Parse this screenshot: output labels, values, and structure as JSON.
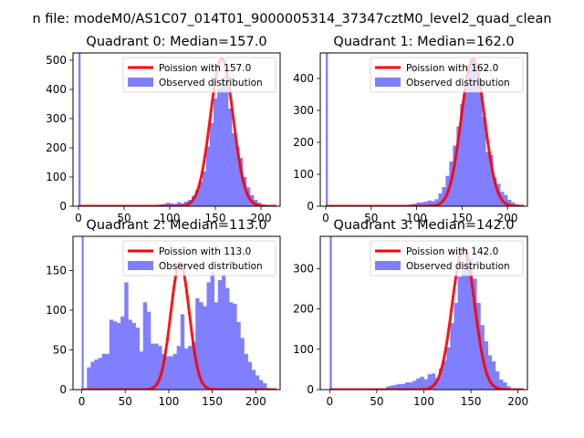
{
  "figure": {
    "suptitle": "n file: modeM0/AS1C07_014T01_9000005314_37347cztM0_level2_quad_clean",
    "colors": {
      "fit": "#ff0000",
      "hist": "#7f7fff",
      "axes": "#000000"
    }
  },
  "chart_data": [
    {
      "type": "bar",
      "title": "Quadrant 0: Median=157.0",
      "xlim": [
        -6,
        221
      ],
      "ylim": [
        0,
        525
      ],
      "xticks": [
        0,
        50,
        100,
        150,
        200
      ],
      "yticks": [
        0,
        100,
        200,
        300,
        400,
        500
      ],
      "legend": [
        "Poission with 157.0",
        "Observed distribution"
      ],
      "legend_loc": "upper right",
      "fit": {
        "label": "Poission with 157.0",
        "mean": 157.0,
        "peak": 505
      },
      "hist": {
        "label": "Observed distribution",
        "bin_width": 4,
        "spike": {
          "x0": 0,
          "x1": 2,
          "value": 525
        },
        "x0": [
          84,
          88,
          92,
          96,
          100,
          104,
          108,
          112,
          116,
          120,
          124,
          128,
          132,
          136,
          140,
          144,
          148,
          152,
          156,
          160,
          164,
          168,
          172,
          176,
          180,
          184,
          188,
          192,
          196,
          200,
          204,
          208
        ],
        "values": [
          4,
          6,
          8,
          12,
          10,
          8,
          14,
          10,
          16,
          22,
          36,
          55,
          85,
          120,
          205,
          285,
          370,
          405,
          440,
          450,
          335,
          250,
          205,
          165,
          100,
          65,
          38,
          22,
          12,
          6,
          4,
          2
        ]
      }
    },
    {
      "type": "bar",
      "title": "Quadrant 1: Median=162.0",
      "xlim": [
        -6,
        222
      ],
      "ylim": [
        0,
        480
      ],
      "xticks": [
        0,
        50,
        100,
        150,
        200
      ],
      "yticks": [
        0,
        100,
        200,
        300,
        400
      ],
      "legend": [
        "Poission with 162.0",
        "Observed distribution"
      ],
      "legend_loc": "upper right",
      "fit": {
        "label": "Poission with 162.0",
        "mean": 162.0,
        "peak": 462
      },
      "hist": {
        "label": "Observed distribution",
        "bin_width": 4,
        "spike": {
          "x0": 0,
          "x1": 2,
          "value": 480
        },
        "x0": [
          92,
          96,
          100,
          104,
          108,
          112,
          116,
          120,
          124,
          128,
          132,
          136,
          140,
          144,
          148,
          152,
          156,
          160,
          164,
          168,
          172,
          176,
          180,
          184,
          188,
          192,
          196,
          200,
          204,
          208,
          212
        ],
        "values": [
          6,
          8,
          12,
          12,
          14,
          18,
          16,
          22,
          40,
          60,
          95,
          140,
          190,
          250,
          320,
          385,
          440,
          460,
          435,
          390,
          280,
          170,
          160,
          90,
          70,
          45,
          35,
          20,
          12,
          6,
          3
        ]
      }
    },
    {
      "type": "bar",
      "title": "Quadrant 2: Median=113.0",
      "xlim": [
        -10,
        228
      ],
      "ylim": [
        0,
        193
      ],
      "xticks": [
        0,
        50,
        100,
        150,
        200
      ],
      "yticks": [
        0,
        50,
        100,
        150
      ],
      "legend": [
        "Poission with 113.0",
        "Observed distribution"
      ],
      "legend_loc": "upper right",
      "fit": {
        "label": "Poission with 113.0",
        "mean": 113.0,
        "peak": 160
      },
      "hist": {
        "label": "Observed distribution",
        "bin_width": 4.3,
        "spike": {
          "x0": 0,
          "x1": 2,
          "value": 193
        },
        "x0": [
          6.0,
          10.3,
          14.6,
          18.9,
          23.2,
          27.5,
          31.8,
          36.1,
          40.4,
          44.7,
          49.0,
          53.3,
          57.6,
          61.9,
          66.2,
          70.5,
          74.8,
          79.1,
          83.4,
          87.7,
          92.0,
          96.3,
          100.6,
          104.9,
          109.2,
          113.5,
          117.8,
          122.1,
          126.4,
          130.7,
          135.0,
          139.3,
          143.6,
          147.9,
          152.2,
          156.5,
          160.8,
          165.1,
          169.4,
          173.7,
          178.0,
          182.3,
          186.6,
          190.9,
          195.2,
          199.5,
          203.8,
          208.1,
          212.4
        ],
        "values": [
          28,
          35,
          38,
          40,
          45,
          45,
          88,
          86,
          84,
          92,
          135,
          88,
          84,
          78,
          48,
          110,
          98,
          58,
          58,
          55,
          45,
          42,
          42,
          45,
          55,
          95,
          52,
          55,
          60,
          115,
          110,
          105,
          135,
          148,
          110,
          138,
          145,
          128,
          110,
          108,
          85,
          65,
          45,
          35,
          25,
          18,
          12,
          8,
          2
        ]
      }
    },
    {
      "type": "bar",
      "title": "Quadrant 3: Median=142.0",
      "xlim": [
        -10,
        210
      ],
      "ylim": [
        0,
        380
      ],
      "xticks": [
        0,
        50,
        100,
        150,
        200
      ],
      "yticks": [
        0,
        100,
        200,
        300
      ],
      "legend": [
        "Poission with 142.0",
        "Observed distribution"
      ],
      "legend_loc": "upper right",
      "fit": {
        "label": "Poission with 142.0",
        "mean": 142.0,
        "peak": 350
      },
      "hist": {
        "label": "Observed distribution",
        "bin_width": 4,
        "spike": {
          "x0": 0,
          "x1": 2,
          "value": 380
        },
        "x0": [
          60,
          64,
          68,
          72,
          76,
          80,
          84,
          88,
          92,
          96,
          100,
          104,
          108,
          112,
          116,
          120,
          124,
          128,
          132,
          136,
          140,
          144,
          148,
          152,
          156,
          160,
          164,
          168,
          172,
          176,
          180,
          184,
          188,
          192
        ],
        "values": [
          8,
          10,
          12,
          14,
          14,
          18,
          18,
          22,
          28,
          32,
          26,
          38,
          40,
          28,
          52,
          72,
          105,
          165,
          215,
          280,
          315,
          345,
          325,
          275,
          215,
          160,
          120,
          85,
          70,
          45,
          25,
          18,
          8,
          3
        ]
      }
    }
  ]
}
